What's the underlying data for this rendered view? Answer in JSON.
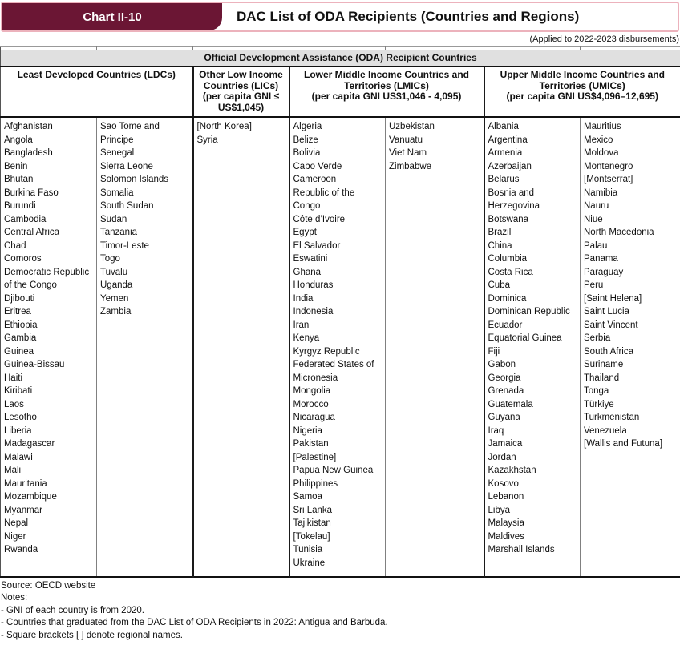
{
  "header": {
    "chart_label": "Chart II-10",
    "title": "DAC List of ODA Recipients (Countries and Regions)",
    "applied_note": "(Applied to 2022-2023 disbursements)"
  },
  "colors": {
    "accent_maroon": "#6B1634",
    "band_border_pink": "#ECB2BC",
    "caption_bg": "#E0E0E0"
  },
  "table": {
    "caption": "Official Development Assistance (ODA) Recipient Countries",
    "groups": [
      {
        "name": "Least Developed Countries (LDCs)",
        "subtitle": ""
      },
      {
        "name": "Other Low Income Countries (LICs)",
        "subtitle": "(per capita GNI ≤ US$1,045)"
      },
      {
        "name": "Lower Middle Income Countries and Territories (LMICs)",
        "subtitle": "(per capita GNI US$1,046 - 4,095)"
      },
      {
        "name": "Upper Middle Income Countries and Territories (UMICs)",
        "subtitle": "(per capita GNI US$4,096–12,695)"
      }
    ],
    "columns": {
      "ldc_1": [
        "Afghanistan",
        "Angola",
        "Bangladesh",
        "Benin",
        "Bhutan",
        "Burkina Faso",
        "Burundi",
        "Cambodia",
        "Central Africa",
        "Chad",
        "Comoros",
        "Democratic Republic of the Congo",
        "Djibouti",
        "Eritrea",
        "Ethiopia",
        "Gambia",
        "Guinea",
        "Guinea-Bissau",
        "Haiti",
        "Kiribati",
        "Laos",
        "Lesotho",
        "Liberia",
        "Madagascar",
        "Malawi",
        "Mali",
        "Mauritania",
        "Mozambique",
        "Myanmar",
        "Nepal",
        "Niger",
        "Rwanda"
      ],
      "ldc_2": [
        "Sao Tome and Principe",
        "Senegal",
        "Sierra Leone",
        "Solomon Islands",
        "Somalia",
        "South Sudan",
        "Sudan",
        "Tanzania",
        "Timor-Leste",
        "Togo",
        "Tuvalu",
        "Uganda",
        "Yemen",
        "Zambia"
      ],
      "lic": [
        "[North Korea]",
        "Syria"
      ],
      "lmic_1": [
        "Algeria",
        "Belize",
        "Bolivia",
        "Cabo Verde",
        "Cameroon",
        "Republic of the Congo",
        "Côte d’Ivoire",
        "Egypt",
        "El Salvador",
        "Eswatini",
        "Ghana",
        "Honduras",
        "India",
        "Indonesia",
        "Iran",
        "Kenya",
        "Kyrgyz Republic",
        "Federated States of Micronesia",
        "Mongolia",
        "Morocco",
        "Nicaragua",
        "Nigeria",
        "Pakistan",
        "[Palestine]",
        "Papua New Guinea",
        "Philippines",
        "Samoa",
        "Sri Lanka",
        "Tajikistan",
        "[Tokelau]",
        "Tunisia",
        "Ukraine"
      ],
      "lmic_2": [
        "Uzbekistan",
        "Vanuatu",
        "Viet Nam",
        "Zimbabwe"
      ],
      "umic_1": [
        "Albania",
        "Argentina",
        "Armenia",
        "Azerbaijan",
        "Belarus",
        "Bosnia and Herzegovina",
        "Botswana",
        "Brazil",
        "China",
        "Columbia",
        "Costa Rica",
        "Cuba",
        "Dominica",
        "Dominican Republic",
        "Ecuador",
        "Equatorial Guinea",
        "Fiji",
        "Gabon",
        "Georgia",
        "Grenada",
        "Guatemala",
        "Guyana",
        "Iraq",
        "Jamaica",
        "Jordan",
        "Kazakhstan",
        "Kosovo",
        "Lebanon",
        "Libya",
        "Malaysia",
        "Maldives",
        "Marshall Islands"
      ],
      "umic_2": [
        "Mauritius",
        "Mexico",
        "Moldova",
        "Montenegro",
        "[Montserrat]",
        "Namibia",
        "Nauru",
        "Niue",
        "North Macedonia",
        "Palau",
        "Panama",
        "Paraguay",
        "Peru",
        "[Saint Helena]",
        "Saint Lucia",
        "Saint Vincent",
        "Serbia",
        "South Africa",
        "Suriname",
        "Thailand",
        "Tonga",
        "Türkiye",
        "Turkmenistan",
        "Venezuela",
        "[Wallis and Futuna]"
      ]
    }
  },
  "footer": {
    "source": "Source: OECD website",
    "notes_label": "Notes:",
    "notes": [
      "- GNI of each country is from 2020.",
      "- Countries that graduated from the DAC List of ODA Recipients in 2022: Antigua and Barbuda.",
      "- Square brackets [ ] denote regional names."
    ]
  }
}
